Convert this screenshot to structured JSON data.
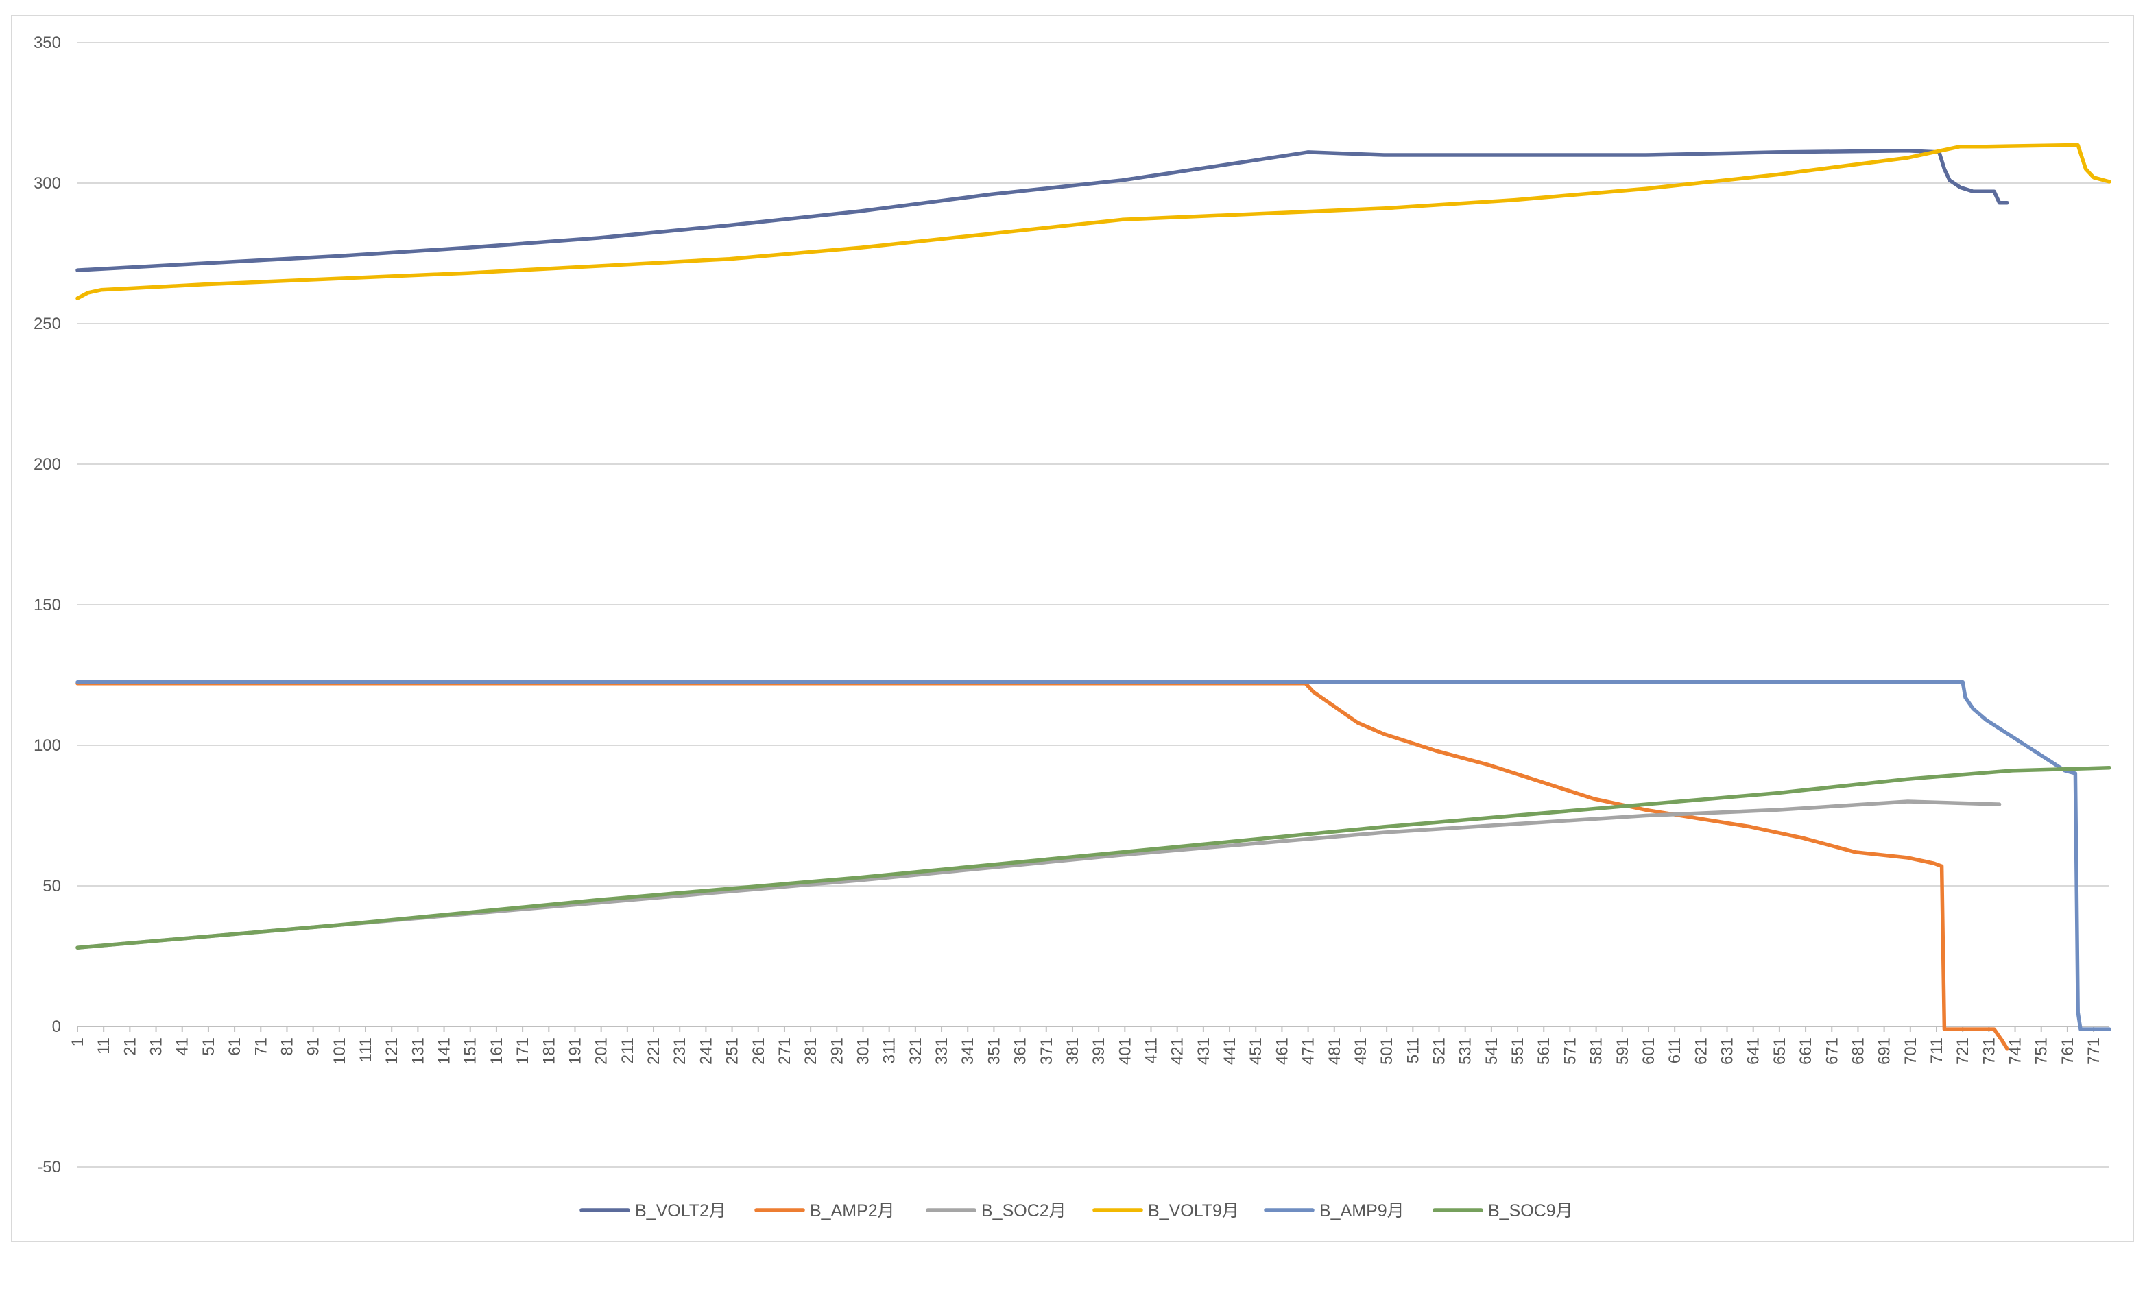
{
  "chart_data": {
    "type": "line",
    "title": "",
    "xlabel": "",
    "ylabel": "",
    "ylim": [
      -50,
      350
    ],
    "yticks": [
      -50,
      0,
      50,
      100,
      150,
      200,
      250,
      300,
      350
    ],
    "xlim": [
      1,
      777
    ],
    "xtick_start": 1,
    "xtick_step": 10,
    "xtick_count": 78,
    "grid": true,
    "legend_position": "bottom",
    "series": [
      {
        "name": "B_VOLT2月",
        "color": "#5b6b9b",
        "x": [
          1,
          50,
          100,
          150,
          200,
          250,
          300,
          350,
          400,
          450,
          471,
          500,
          550,
          600,
          650,
          700,
          712,
          714,
          716,
          720,
          725,
          730,
          733,
          735,
          738
        ],
        "y": [
          269,
          271.5,
          274,
          277,
          280.5,
          285,
          290,
          296,
          301,
          308,
          311,
          310,
          310,
          310,
          311,
          311.5,
          311,
          305,
          301,
          298.5,
          297,
          297,
          297,
          293,
          293
        ]
      },
      {
        "name": "B_AMP2月",
        "color": "#ed7d31",
        "x": [
          1,
          100,
          200,
          300,
          400,
          470,
          473,
          490,
          500,
          520,
          540,
          560,
          580,
          600,
          620,
          640,
          660,
          680,
          700,
          710,
          713,
          714,
          716,
          730,
          733,
          736,
          738
        ],
        "y": [
          122,
          122,
          122,
          122,
          122,
          122,
          119,
          108,
          104,
          98,
          93,
          87,
          81,
          77,
          74,
          71,
          67,
          62,
          60,
          58,
          57,
          -1,
          -1,
          -1,
          -1,
          -5,
          -8
        ]
      },
      {
        "name": "B_SOC2月",
        "color": "#a5a5a5",
        "x": [
          1,
          100,
          200,
          300,
          400,
          500,
          600,
          650,
          700,
          735
        ],
        "y": [
          28,
          36,
          44,
          52,
          61,
          69,
          75,
          77,
          80,
          79
        ]
      },
      {
        "name": "B_VOLT9月",
        "color": "#f2b800",
        "x": [
          1,
          5,
          10,
          20,
          50,
          100,
          150,
          200,
          250,
          300,
          350,
          400,
          450,
          500,
          550,
          600,
          650,
          700,
          720,
          730,
          760,
          765,
          768,
          771,
          777
        ],
        "y": [
          259,
          261,
          262,
          262.5,
          264,
          266,
          268,
          270.5,
          273,
          277,
          282,
          287,
          289,
          291,
          294,
          298,
          303,
          309,
          313,
          313,
          313.5,
          313.5,
          305,
          302,
          300.5
        ]
      },
      {
        "name": "B_AMP9月",
        "color": "#6f8dc1",
        "x": [
          1,
          100,
          200,
          300,
          400,
          500,
          600,
          700,
          721,
          722,
          725,
          730,
          735,
          740,
          745,
          750,
          755,
          760,
          764,
          765,
          766,
          767,
          770,
          777
        ],
        "y": [
          122.5,
          122.5,
          122.5,
          122.5,
          122.5,
          122.5,
          122.5,
          122.5,
          122.5,
          117,
          113,
          109,
          106,
          103,
          100,
          97,
          94,
          91,
          90,
          5,
          -1,
          -1,
          -1,
          -1
        ]
      },
      {
        "name": "B_SOC9月",
        "color": "#76a05c",
        "x": [
          1,
          100,
          200,
          300,
          400,
          500,
          600,
          650,
          700,
          740,
          760,
          777
        ],
        "y": [
          28,
          36,
          45,
          53,
          62,
          71,
          79,
          83,
          88,
          91,
          91.5,
          92
        ]
      }
    ]
  }
}
